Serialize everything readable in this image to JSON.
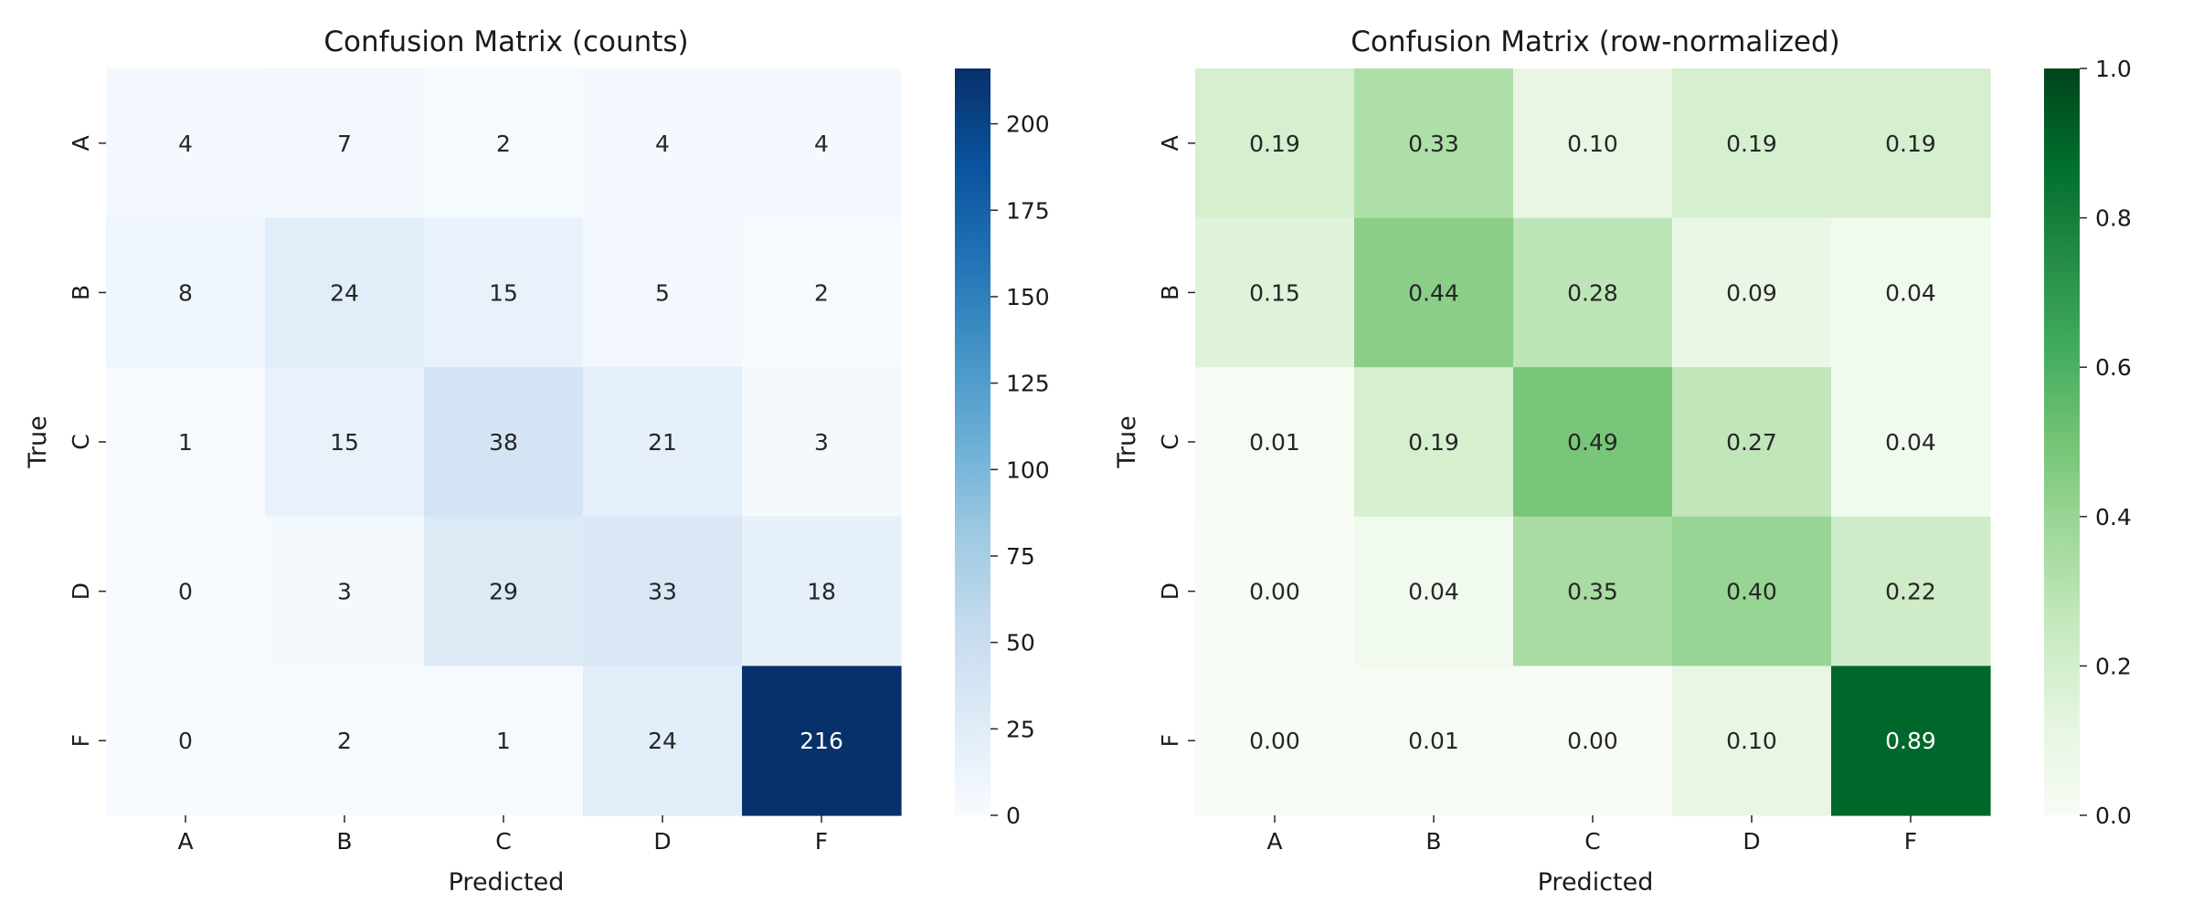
{
  "chart_data": [
    {
      "type": "heatmap",
      "title": "Confusion Matrix (counts)",
      "xlabel": "Predicted",
      "ylabel": "True",
      "x_categories": [
        "A",
        "B",
        "C",
        "D",
        "F"
      ],
      "y_categories": [
        "A",
        "B",
        "C",
        "D",
        "F"
      ],
      "values": [
        [
          4,
          7,
          2,
          4,
          4
        ],
        [
          8,
          24,
          15,
          5,
          2
        ],
        [
          1,
          15,
          38,
          21,
          3
        ],
        [
          0,
          3,
          29,
          33,
          18
        ],
        [
          0,
          2,
          1,
          24,
          216
        ]
      ],
      "value_format": "int",
      "colormap": "Blues",
      "colorbar": {
        "min": 0,
        "max": 216,
        "ticks": [
          0,
          25,
          50,
          75,
          100,
          125,
          150,
          175,
          200
        ]
      }
    },
    {
      "type": "heatmap",
      "title": "Confusion Matrix (row-normalized)",
      "xlabel": "Predicted",
      "ylabel": "True",
      "x_categories": [
        "A",
        "B",
        "C",
        "D",
        "F"
      ],
      "y_categories": [
        "A",
        "B",
        "C",
        "D",
        "F"
      ],
      "values": [
        [
          0.19,
          0.33,
          0.1,
          0.19,
          0.19
        ],
        [
          0.15,
          0.44,
          0.28,
          0.09,
          0.04
        ],
        [
          0.01,
          0.19,
          0.49,
          0.27,
          0.04
        ],
        [
          0.0,
          0.04,
          0.35,
          0.4,
          0.22
        ],
        [
          0.0,
          0.01,
          0.0,
          0.1,
          0.89
        ]
      ],
      "value_format": "2f",
      "colormap": "Greens",
      "colorbar": {
        "min": 0.0,
        "max": 1.0,
        "ticks": [
          0.0,
          0.2,
          0.4,
          0.6,
          0.8,
          1.0
        ]
      }
    }
  ]
}
